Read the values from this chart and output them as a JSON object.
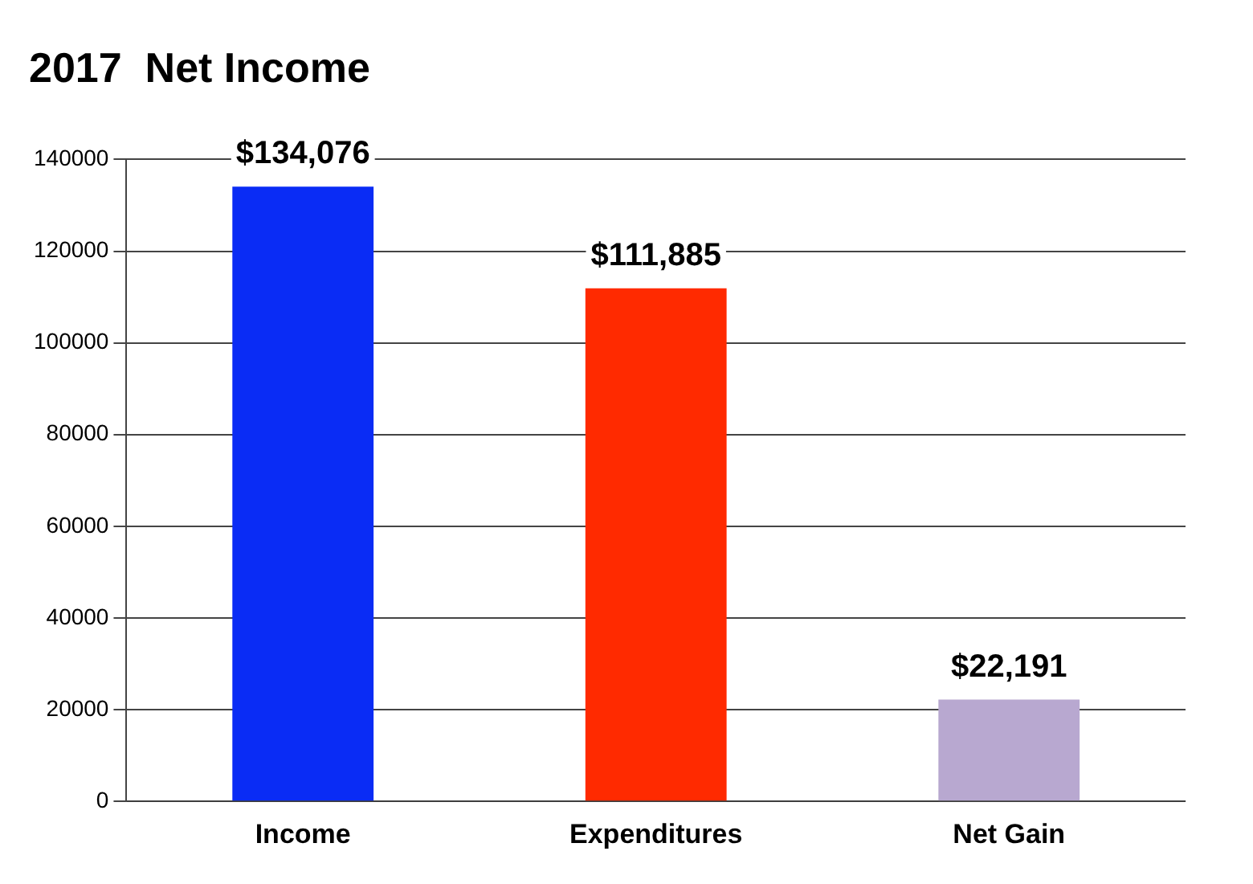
{
  "chart_data": {
    "type": "bar",
    "title": "2017  Net Income",
    "categories": [
      "Income",
      "Expenditures",
      "Net Gain"
    ],
    "values": [
      134076,
      111885,
      22191
    ],
    "colors": [
      "#0a2cf5",
      "#ff2a00",
      "#b8a8d0"
    ],
    "value_labels": [
      "$134,076",
      "$111,885",
      "$22,191"
    ],
    "ylim": [
      0,
      140000
    ],
    "yticks": [
      0,
      20000,
      40000,
      60000,
      80000,
      100000,
      120000,
      140000
    ],
    "grid": "y"
  }
}
